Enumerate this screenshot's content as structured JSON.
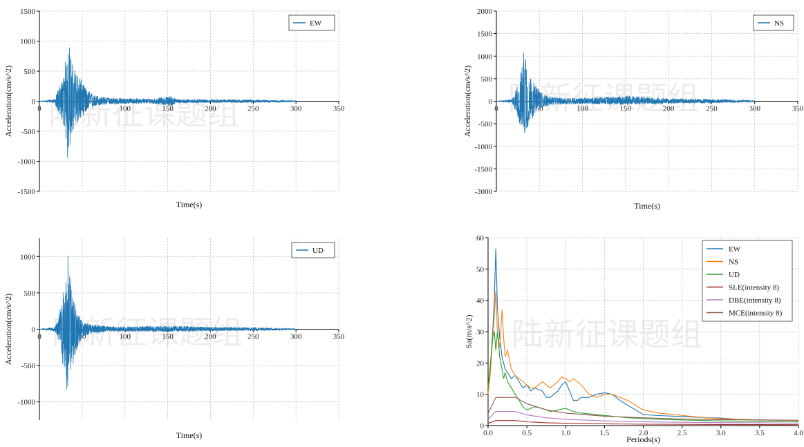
{
  "watermark": "陆新征课题组",
  "chart_data": [
    {
      "type": "line",
      "xlabel": "Time(s)",
      "ylabel": "Acceleration(cm/s^2)",
      "xlim": [
        0,
        350
      ],
      "ylim": [
        -1500,
        1500
      ],
      "xticks": [
        0,
        50,
        100,
        150,
        200,
        250,
        300,
        350
      ],
      "yticks": [
        -1500,
        -1000,
        -500,
        0,
        500,
        1000,
        1500
      ],
      "legend": "top-right",
      "series": [
        {
          "name": "EW",
          "color": "#1f77b4"
        }
      ],
      "envelope": {
        "t": [
          0,
          18,
          22,
          28,
          30,
          32,
          33,
          35,
          38,
          42,
          48,
          55,
          65,
          80,
          100,
          130,
          155,
          160,
          200,
          250,
          300
        ],
        "pos": [
          0,
          30,
          200,
          400,
          620,
          900,
          1120,
          950,
          650,
          520,
          400,
          200,
          100,
          60,
          50,
          40,
          90,
          30,
          25,
          25,
          10
        ],
        "neg": [
          0,
          -30,
          -180,
          -400,
          -600,
          -750,
          -1050,
          -800,
          -600,
          -420,
          -300,
          -180,
          -90,
          -50,
          -45,
          -35,
          -80,
          -30,
          -25,
          -25,
          -10
        ],
        "t_end": 300
      }
    },
    {
      "type": "line",
      "xlabel": "Time(s)",
      "ylabel": "Acceleration(cm/s^2)",
      "xlim": [
        0,
        350
      ],
      "ylim": [
        -2000,
        2000
      ],
      "xticks": [
        0,
        50,
        100,
        150,
        200,
        250,
        300,
        350
      ],
      "yticks": [
        -2000,
        -1500,
        -1000,
        -500,
        0,
        500,
        1000,
        1500,
        2000
      ],
      "legend": "top-right",
      "series": [
        {
          "name": "NS",
          "color": "#1f77b4"
        }
      ],
      "envelope": {
        "t": [
          0,
          18,
          22,
          26,
          30,
          33,
          35,
          38,
          42,
          48,
          55,
          65,
          80,
          100,
          150,
          200,
          250,
          300
        ],
        "pos": [
          0,
          40,
          200,
          450,
          800,
          1500,
          900,
          600,
          450,
          300,
          150,
          100,
          80,
          70,
          120,
          60,
          50,
          20
        ],
        "neg": [
          0,
          -40,
          -200,
          -450,
          -650,
          -780,
          -700,
          -500,
          -380,
          -250,
          -130,
          -90,
          -70,
          -60,
          -80,
          -50,
          -40,
          -20
        ],
        "t_end": 300
      }
    },
    {
      "type": "line",
      "xlabel": "Time(s)",
      "ylabel": "Acceleration(cm/s^2)",
      "xlim": [
        0,
        350
      ],
      "ylim": [
        -1250,
        1250
      ],
      "xticks": [
        0,
        50,
        100,
        150,
        200,
        250,
        300,
        350
      ],
      "yticks": [
        -1000,
        -500,
        0,
        500,
        1000
      ],
      "legend": "top-right",
      "series": [
        {
          "name": "UD",
          "color": "#1f77b4"
        }
      ],
      "envelope": {
        "t": [
          0,
          18,
          22,
          26,
          30,
          33,
          36,
          40,
          45,
          50,
          60,
          80,
          100,
          150,
          200,
          250,
          300
        ],
        "pos": [
          0,
          30,
          150,
          400,
          800,
          1100,
          700,
          450,
          250,
          120,
          70,
          40,
          35,
          50,
          30,
          25,
          10
        ],
        "neg": [
          0,
          -30,
          -150,
          -400,
          -700,
          -920,
          -650,
          -450,
          -250,
          -120,
          -60,
          -35,
          -30,
          -35,
          -25,
          -20,
          -10
        ],
        "t_end": 300
      }
    },
    {
      "type": "line",
      "xlabel": "Periods(s)",
      "ylabel": "Sa(m/s^2)",
      "xlim": [
        0,
        4.0
      ],
      "ylim": [
        0,
        60
      ],
      "xticks": [
        0.0,
        0.5,
        1.0,
        1.5,
        2.0,
        2.5,
        3.0,
        3.5,
        4.0
      ],
      "xticklabels": [
        "0.0",
        "0.5",
        "1.0",
        "1.5",
        "2.0",
        "2.5",
        "3.0",
        "3.5",
        "4.0"
      ],
      "yticks": [
        0,
        10,
        20,
        30,
        40,
        50,
        60
      ],
      "legend": "top-right",
      "series": [
        {
          "name": "EW",
          "color": "#1f77b4",
          "x": [
            0.0,
            0.03,
            0.06,
            0.08,
            0.1,
            0.12,
            0.15,
            0.18,
            0.22,
            0.25,
            0.3,
            0.35,
            0.4,
            0.45,
            0.5,
            0.55,
            0.6,
            0.7,
            0.75,
            0.8,
            0.85,
            0.9,
            0.95,
            1.0,
            1.05,
            1.1,
            1.15,
            1.2,
            1.3,
            1.4,
            1.5,
            1.6,
            1.7,
            1.8,
            1.9,
            2.0,
            2.2,
            2.4,
            2.6,
            2.8,
            3.0,
            3.2,
            3.5,
            3.8,
            4.0
          ],
          "y": [
            12,
            18,
            30,
            40,
            56.5,
            38,
            28,
            22,
            18,
            17,
            15,
            16,
            14,
            12,
            13,
            11,
            12,
            11,
            9,
            9,
            10,
            11,
            13,
            14,
            11,
            8,
            8,
            9,
            9,
            10,
            10.5,
            10,
            8,
            6.5,
            5,
            3.5,
            3.2,
            3.0,
            2.8,
            2.5,
            2.4,
            2.0,
            1.8,
            1.7,
            1.6
          ]
        },
        {
          "name": "NS",
          "color": "#ff7f0e",
          "x": [
            0.0,
            0.03,
            0.06,
            0.08,
            0.1,
            0.12,
            0.15,
            0.18,
            0.2,
            0.22,
            0.25,
            0.3,
            0.35,
            0.4,
            0.45,
            0.5,
            0.55,
            0.6,
            0.65,
            0.7,
            0.75,
            0.8,
            0.85,
            0.9,
            0.95,
            1.0,
            1.05,
            1.1,
            1.15,
            1.2,
            1.3,
            1.4,
            1.5,
            1.6,
            1.7,
            1.8,
            1.9,
            2.0,
            2.2,
            2.4,
            2.6,
            2.8,
            3.0,
            3.2,
            3.5,
            3.8,
            4.0
          ],
          "y": [
            10,
            17,
            28,
            35,
            43,
            30,
            25,
            37,
            28,
            22,
            24,
            18,
            16,
            15,
            14,
            13,
            12,
            12,
            13,
            14,
            13,
            12,
            13,
            14,
            15.5,
            15,
            14,
            15,
            14,
            13,
            10,
            9,
            10,
            10,
            9,
            8,
            6.5,
            5,
            4,
            3.5,
            3.0,
            2.5,
            2.2,
            2.0,
            1.8,
            1.7,
            1.6
          ]
        },
        {
          "name": "UD",
          "color": "#2ca02c",
          "x": [
            0.0,
            0.03,
            0.06,
            0.08,
            0.1,
            0.12,
            0.15,
            0.18,
            0.2,
            0.22,
            0.25,
            0.3,
            0.35,
            0.4,
            0.45,
            0.5,
            0.55,
            0.6,
            0.7,
            0.8,
            0.9,
            1.0,
            1.1,
            1.2,
            1.4,
            1.6,
            1.8,
            2.0,
            2.2,
            2.5,
            3.0,
            3.5,
            4.0
          ],
          "y": [
            12,
            20,
            28,
            30,
            24,
            30,
            22,
            18,
            15,
            17,
            14,
            12,
            10,
            8,
            6,
            5,
            5.5,
            6,
            5.5,
            4.5,
            5,
            5.5,
            4.5,
            4,
            3.5,
            3,
            2.5,
            2.2,
            2.0,
            1.8,
            1.5,
            1.3,
            1.2
          ]
        },
        {
          "name": "SLE(intensity 8)",
          "color": "#a52a2a",
          "x": [
            0.0,
            0.1,
            0.35,
            0.5,
            0.75,
            1.0,
            1.5,
            2.0,
            2.5,
            3.0,
            3.5,
            4.0
          ],
          "y": [
            0.7,
            1.6,
            1.6,
            1.2,
            0.9,
            0.75,
            0.55,
            0.45,
            0.4,
            0.35,
            0.3,
            0.28
          ]
        },
        {
          "name": "DBE(intensity 8)",
          "color": "#b279c6",
          "x": [
            0.0,
            0.1,
            0.35,
            0.5,
            0.75,
            1.0,
            1.5,
            2.0,
            2.5,
            3.0,
            3.5,
            4.0
          ],
          "y": [
            2.0,
            4.5,
            4.5,
            3.4,
            2.5,
            2.0,
            1.5,
            1.2,
            1.05,
            0.95,
            0.9,
            0.8
          ]
        },
        {
          "name": "MCE(intensity 8)",
          "color": "#8c564b",
          "x": [
            0.0,
            0.1,
            0.35,
            0.5,
            0.75,
            1.0,
            1.5,
            2.0,
            2.5,
            3.0,
            3.5,
            4.0
          ],
          "y": [
            3.8,
            9.0,
            9.0,
            7.0,
            5.0,
            4.0,
            3.0,
            2.5,
            2.1,
            1.9,
            1.8,
            1.7
          ]
        }
      ]
    }
  ]
}
